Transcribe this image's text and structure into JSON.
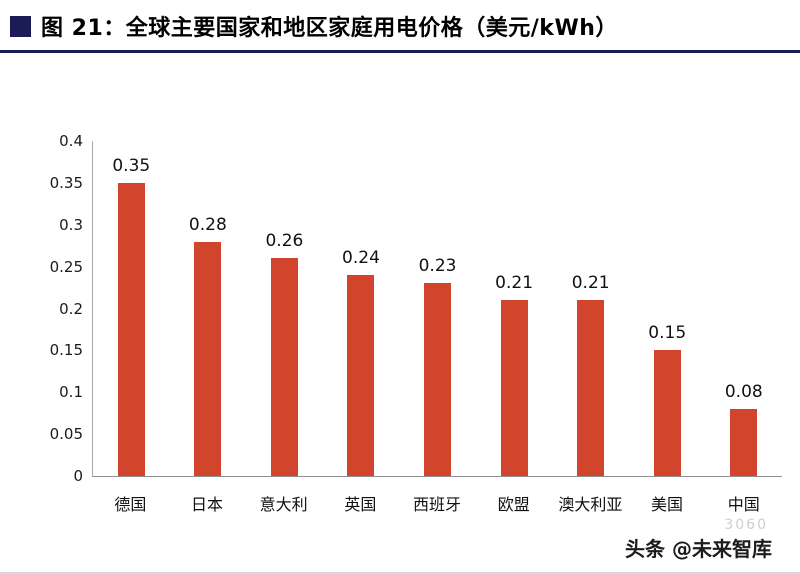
{
  "header": {
    "title": "图 21：全球主要国家和地区家庭用电价格（美元/kWh）"
  },
  "footer": {
    "credit": "头条 @未来智库",
    "watermark": "3060"
  },
  "colors": {
    "accent_navy": "#1b1b55",
    "bar_red": "#d2442c"
  },
  "chart_data": {
    "type": "bar",
    "title": "全球主要国家和地区家庭用电价格（美元/kWh）",
    "categories": [
      "德国",
      "日本",
      "意大利",
      "英国",
      "西班牙",
      "欧盟",
      "澳大利亚",
      "美国",
      "中国"
    ],
    "values": [
      0.35,
      0.28,
      0.26,
      0.24,
      0.23,
      0.21,
      0.21,
      0.15,
      0.08
    ],
    "value_labels": [
      "0.35",
      "0.28",
      "0.26",
      "0.24",
      "0.23",
      "0.21",
      "0.21",
      "0.15",
      "0.08"
    ],
    "xlabel": "",
    "ylabel": "",
    "ylim": [
      0,
      0.4
    ],
    "yticks": [
      0,
      0.05,
      0.1,
      0.15,
      0.2,
      0.25,
      0.3,
      0.35,
      0.4
    ],
    "grid": false,
    "legend": false,
    "bar_color": "#d2442c"
  }
}
